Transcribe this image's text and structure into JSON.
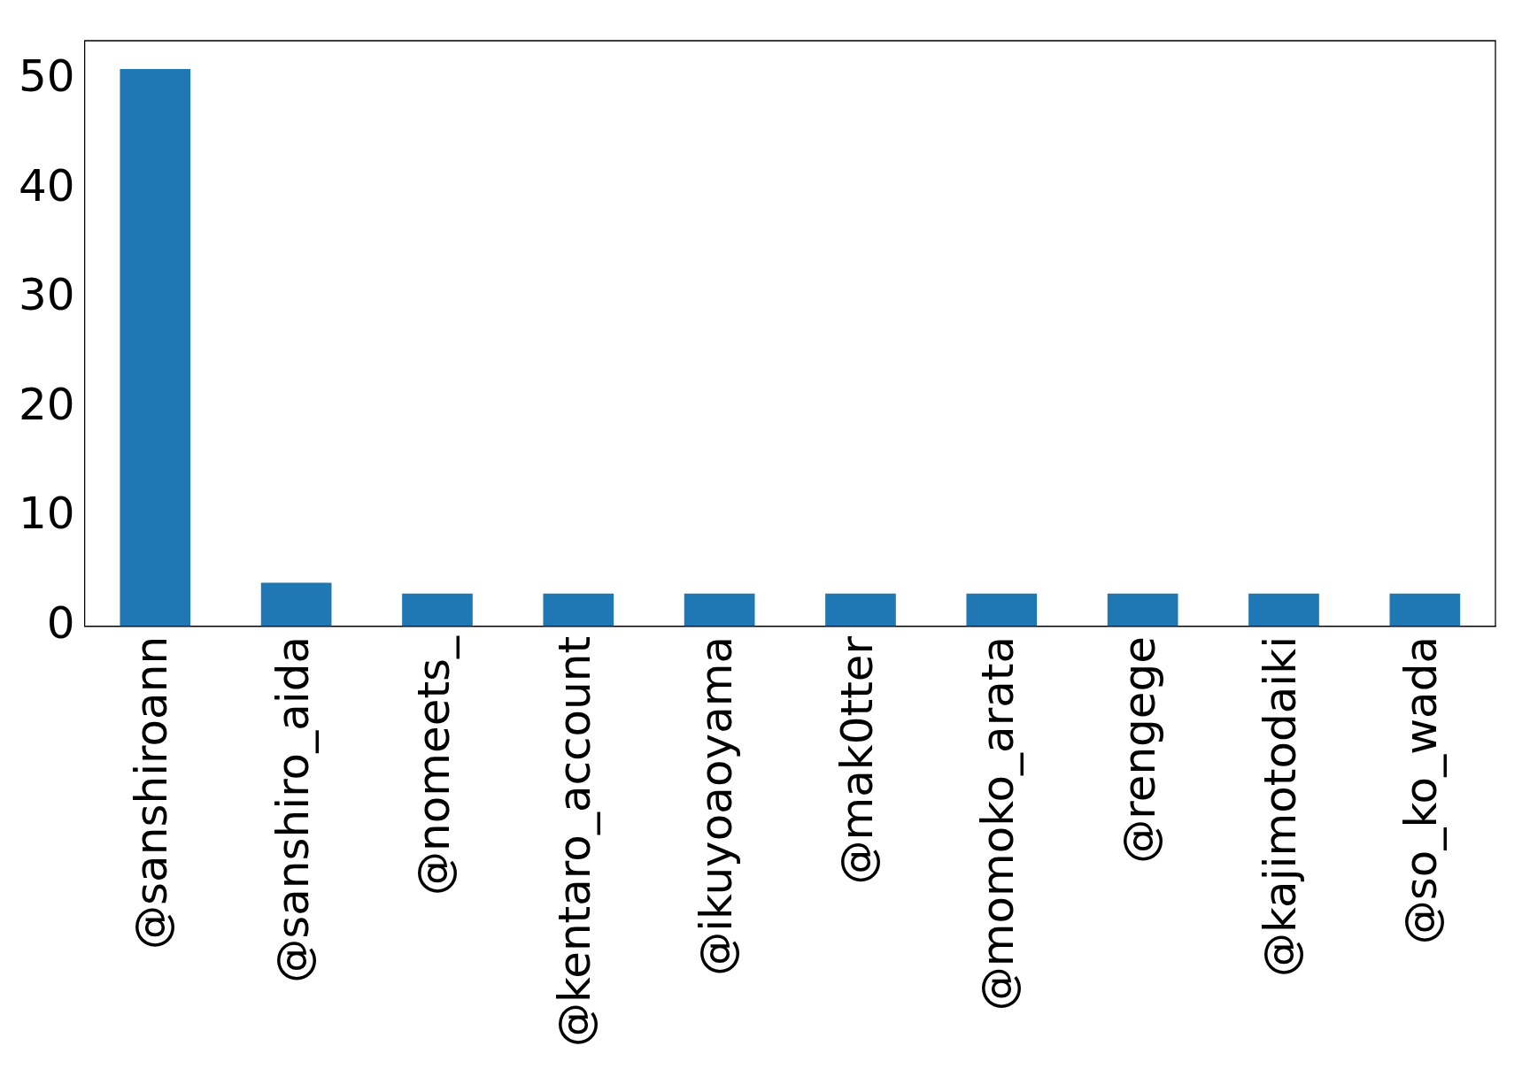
{
  "chart_data": {
    "type": "bar",
    "categories": [
      "@sanshiroann",
      "@sanshiro_aida",
      "@nomeets_",
      "@kentaro_account",
      "@ikuyoaoyama",
      "@mak0tter",
      "@momoko_arata",
      "@rengege",
      "@kajimotodaiki",
      "@so_ko_wada"
    ],
    "values": [
      51,
      4,
      3,
      3,
      3,
      3,
      3,
      3,
      3,
      3
    ],
    "color": "#1f77b4",
    "ylim": [
      0,
      53.6
    ],
    "yticks": [
      0,
      10,
      20,
      30,
      40,
      50
    ],
    "grid": false,
    "legend": false
  }
}
